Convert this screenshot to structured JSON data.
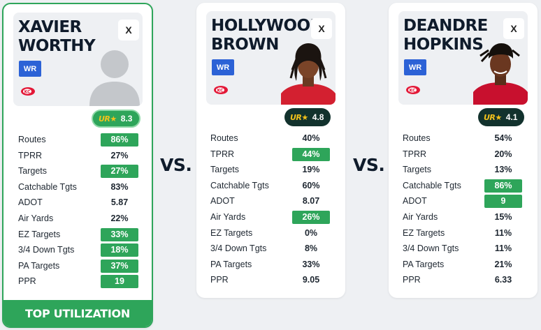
{
  "vs_label": "VS.",
  "players": [
    {
      "name": "XAVIER WORTHY",
      "close_label": "X",
      "position": "WR",
      "team_logo": "chiefs-logo-icon",
      "photo": "placeholder-avatar",
      "score_logo": "UR★",
      "score": "8.3",
      "score_style": "green",
      "stats": [
        {
          "label": "Routes",
          "value": "86%",
          "highlight": true
        },
        {
          "label": "TPRR",
          "value": "27%",
          "highlight": false
        },
        {
          "label": "Targets",
          "value": "27%",
          "highlight": true
        },
        {
          "label": "Catchable Tgts",
          "value": "83%",
          "highlight": false
        },
        {
          "label": "ADOT",
          "value": "5.87",
          "highlight": false
        },
        {
          "label": "Air Yards",
          "value": "22%",
          "highlight": false
        },
        {
          "label": "EZ Targets",
          "value": "33%",
          "highlight": true
        },
        {
          "label": "3/4 Down Tgts",
          "value": "18%",
          "highlight": true
        },
        {
          "label": "PA Targets",
          "value": "37%",
          "highlight": true
        },
        {
          "label": "PPR",
          "value": "19",
          "highlight": true
        }
      ],
      "footer": "TOP UTILIZATION"
    },
    {
      "name": "HOLLYWOOD BROWN",
      "close_label": "X",
      "position": "WR",
      "team_logo": "chiefs-logo-icon",
      "photo": "player-photo",
      "score_logo": "UR★",
      "score": "4.8",
      "score_style": "dark",
      "stats": [
        {
          "label": "Routes",
          "value": "40%",
          "highlight": false
        },
        {
          "label": "TPRR",
          "value": "44%",
          "highlight": true
        },
        {
          "label": "Targets",
          "value": "19%",
          "highlight": false
        },
        {
          "label": "Catchable Tgts",
          "value": "60%",
          "highlight": false
        },
        {
          "label": "ADOT",
          "value": "8.07",
          "highlight": false
        },
        {
          "label": "Air Yards",
          "value": "26%",
          "highlight": true
        },
        {
          "label": "EZ Targets",
          "value": "0%",
          "highlight": false
        },
        {
          "label": "3/4 Down Tgts",
          "value": "8%",
          "highlight": false
        },
        {
          "label": "PA Targets",
          "value": "33%",
          "highlight": false
        },
        {
          "label": "PPR",
          "value": "9.05",
          "highlight": false
        }
      ]
    },
    {
      "name": "DEANDRE HOPKINS",
      "close_label": "X",
      "position": "WR",
      "team_logo": "chiefs-logo-icon",
      "photo": "player-photo",
      "score_logo": "UR★",
      "score": "4.1",
      "score_style": "dark",
      "stats": [
        {
          "label": "Routes",
          "value": "54%",
          "highlight": false
        },
        {
          "label": "TPRR",
          "value": "20%",
          "highlight": false
        },
        {
          "label": "Targets",
          "value": "13%",
          "highlight": false
        },
        {
          "label": "Catchable Tgts",
          "value": "86%",
          "highlight": true
        },
        {
          "label": "ADOT",
          "value": "9",
          "highlight": true
        },
        {
          "label": "Air Yards",
          "value": "15%",
          "highlight": false
        },
        {
          "label": "EZ Targets",
          "value": "11%",
          "highlight": false
        },
        {
          "label": "3/4 Down Tgts",
          "value": "11%",
          "highlight": false
        },
        {
          "label": "PA Targets",
          "value": "21%",
          "highlight": false
        },
        {
          "label": "PPR",
          "value": "6.33",
          "highlight": false
        }
      ]
    }
  ],
  "colors": {
    "highlight": "#2ea55a",
    "dark_pill": "#12322d",
    "position_badge": "#2c62d6",
    "chiefs_red": "#e31837"
  }
}
